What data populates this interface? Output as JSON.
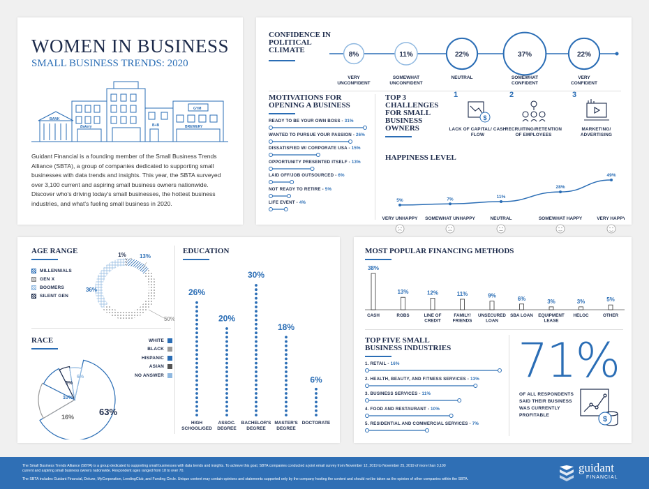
{
  "title": "WOMEN IN BUSINESS",
  "subtitle": "SMALL BUSINESS TRENDS: 2020",
  "intro": "Guidant Financial is a founding member of the Small Business Trends Alliance (SBTA), a group of companies dedicated to supporting small businesses with data trends and insights. This year, the SBTA surveyed over 3,100 current and aspiring small business owners nationwide. Discover who's driving today's small businesses, the hottest business industries, and what's fueling small business in 2020.",
  "illustration": {
    "bank": "BANK",
    "bakery": "Bakery",
    "gym": "GYM",
    "bnb": "B+B",
    "brewery": "BREWERY"
  },
  "colors": {
    "navy": "#1c2a4a",
    "blue": "#2a6db5",
    "light_blue": "#8fb8e0",
    "gray": "#9a9a9a",
    "footer": "#2f6fb5"
  },
  "confidence": {
    "title": "CONFIDENCE IN POLITICAL CLIMATE",
    "levels": [
      {
        "value": "8%",
        "label": "VERY UNCONFIDENT"
      },
      {
        "value": "11%",
        "label": "SOMEWHAT UNCONFIDENT"
      },
      {
        "value": "22%",
        "label": "NEUTRAL"
      },
      {
        "value": "37%",
        "label": "SOMEWHAT CONFIDENT"
      },
      {
        "value": "22%",
        "label": "VERY CONFIDENT"
      }
    ]
  },
  "motivations": {
    "title": "MOTIVATIONS FOR OPENING A BUSINESS",
    "items": [
      {
        "label": "READY TO BE YOUR OWN BOSS",
        "value": "31%",
        "pct": 31
      },
      {
        "label": "WANTED TO PURSUE YOUR PASSION",
        "value": "26%",
        "pct": 26
      },
      {
        "label": "DISSATISFIED W/ CORPORATE USA",
        "value": "15%",
        "pct": 15
      },
      {
        "label": "OPPORTUNITY PRESENTED ITSELF",
        "value": "13%",
        "pct": 13
      },
      {
        "label": "LAID OFF/JOB OUTSOURCED",
        "value": "6%",
        "pct": 6
      },
      {
        "label": "NOT READY TO RETIRE",
        "value": "5%",
        "pct": 5
      },
      {
        "label": "LIFE EVENT",
        "value": "4%",
        "pct": 4
      }
    ]
  },
  "challenges": {
    "title": "TOP 3 CHALLENGES FOR SMALL BUSINESS OWNERS",
    "items": [
      {
        "rank": "1",
        "label": "LACK OF CAPITAL/ CASH FLOW",
        "icon": "cash-flow-icon"
      },
      {
        "rank": "2",
        "label": "RECRUITING/RETENTION OF EMPLOYEES",
        "icon": "employees-icon"
      },
      {
        "rank": "3",
        "label": "MARKETING/ ADVERTISING",
        "icon": "marketing-icon"
      }
    ]
  },
  "happiness": {
    "title": "HAPPINESS LEVEL",
    "levels": [
      {
        "label": "VERY UNHAPPY",
        "value": "5%",
        "pct": 5
      },
      {
        "label": "SOMEWHAT UNHAPPY",
        "value": "7%",
        "pct": 7
      },
      {
        "label": "NEUTRAL",
        "value": "11%",
        "pct": 11
      },
      {
        "label": "SOMEWHAT HAPPY",
        "value": "28%",
        "pct": 28
      },
      {
        "label": "VERY HAPPY",
        "value": "49%",
        "pct": 49
      }
    ]
  },
  "age": {
    "title": "AGE RANGE",
    "legend": [
      "MILLENNIALS",
      "GEN X",
      "BOOMERS",
      "SILENT GEN"
    ],
    "slices": [
      {
        "name": "MILLENNIALS",
        "value": "13%",
        "pct": 13
      },
      {
        "name": "GEN X",
        "value": "50%",
        "pct": 50
      },
      {
        "name": "BOOMERS",
        "value": "36%",
        "pct": 36
      },
      {
        "name": "SILENT GEN",
        "value": "1%",
        "pct": 1
      }
    ]
  },
  "race": {
    "title": "RACE",
    "legend": [
      "WHITE",
      "BLACK",
      "HISPANIC",
      "ASIAN",
      "NO ANSWER"
    ],
    "slices": [
      {
        "name": "WHITE",
        "value": "63%",
        "pct": 63
      },
      {
        "name": "BLACK",
        "value": "16%",
        "pct": 16
      },
      {
        "name": "HISPANIC",
        "value": "10%",
        "pct": 10
      },
      {
        "name": "ASIAN",
        "value": "5%",
        "pct": 5
      },
      {
        "name": "NO ANSWER",
        "value": "6%",
        "pct": 6
      }
    ]
  },
  "education": {
    "title": "EDUCATION",
    "items": [
      {
        "label": "HIGH SCHOOL/GED",
        "value": "26%",
        "pct": 26
      },
      {
        "label": "ASSOC. DEGREE",
        "value": "20%",
        "pct": 20
      },
      {
        "label": "BACHELOR'S DEGREE",
        "value": "30%",
        "pct": 30
      },
      {
        "label": "MASTER'S DEGREE",
        "value": "18%",
        "pct": 18
      },
      {
        "label": "DOCTORATE",
        "value": "6%",
        "pct": 6
      }
    ]
  },
  "financing": {
    "title": "MOST POPULAR FINANCING METHODS",
    "items": [
      {
        "label": "CASH",
        "value": "38%",
        "pct": 38
      },
      {
        "label": "ROBS",
        "value": "13%",
        "pct": 13
      },
      {
        "label": "LINE OF CREDIT",
        "value": "12%",
        "pct": 12
      },
      {
        "label": "FAMILY/ FRIENDS",
        "value": "11%",
        "pct": 11
      },
      {
        "label": "UNSECURED LOAN",
        "value": "9%",
        "pct": 9
      },
      {
        "label": "SBA LOAN",
        "value": "6%",
        "pct": 6
      },
      {
        "label": "EQUIPMENT LEASE",
        "value": "3%",
        "pct": 3
      },
      {
        "label": "HELOC",
        "value": "3%",
        "pct": 3
      },
      {
        "label": "OTHER",
        "value": "5%",
        "pct": 5
      }
    ]
  },
  "industries": {
    "title": "TOP FIVE SMALL BUSINESS INDUSTRIES",
    "items": [
      {
        "label": "1. RETAIL",
        "value": "16%",
        "pct": 16
      },
      {
        "label": "2. HEALTH, BEAUTY, AND FITNESS SERVICES",
        "value": "13%",
        "pct": 13
      },
      {
        "label": "3. BUSINESS SERVICES",
        "value": "11%",
        "pct": 11
      },
      {
        "label": "4. FOOD AND RESTAURANT",
        "value": "10%",
        "pct": 10
      },
      {
        "label": "5. RESIDENTIAL AND COMMERCIAL SERVICES",
        "value": "7%",
        "pct": 7
      }
    ]
  },
  "profitable": {
    "value": "71%",
    "label": "OF ALL RESPONDENTS SAID THEIR BUSINESS WAS CURRENTLY PROFITABLE"
  },
  "footer": {
    "line1": "The Small Business Trends Alliance (SBTA) is a group dedicated to supporting small businesses with data trends and insights. To achieve this goal, SBTA companies conducted a joint email survey from November 12, 2019 to November 25, 2019 of more than 3,100 current and aspiring small business owners nationwide. Respondent ages ranged from 18 to over 70.",
    "line2": "The SBTA includes Guidant Financial, Deluxe, MyCorporation, LendingClub, and Funding Circle. Unique content may contain opinions and statements supported only by the company hosting the content and should not be taken as the opinion of other companies within the SBTA.",
    "logo_main": "guidant",
    "logo_sub": "FINANCIAL"
  },
  "chart_data": [
    {
      "type": "bar",
      "title": "CONFIDENCE IN POLITICAL CLIMATE",
      "categories": [
        "VERY UNCONFIDENT",
        "SOMEWHAT UNCONFIDENT",
        "NEUTRAL",
        "SOMEWHAT CONFIDENT",
        "VERY CONFIDENT"
      ],
      "values": [
        8,
        11,
        22,
        37,
        22
      ]
    },
    {
      "type": "bar",
      "title": "MOTIVATIONS FOR OPENING A BUSINESS",
      "categories": [
        "READY TO BE YOUR OWN BOSS",
        "WANTED TO PURSUE YOUR PASSION",
        "DISSATISFIED W/ CORPORATE USA",
        "OPPORTUNITY PRESENTED ITSELF",
        "LAID OFF/JOB OUTSOURCED",
        "NOT READY TO RETIRE",
        "LIFE EVENT"
      ],
      "values": [
        31,
        26,
        15,
        13,
        6,
        5,
        4
      ]
    },
    {
      "type": "line",
      "title": "HAPPINESS LEVEL",
      "categories": [
        "VERY UNHAPPY",
        "SOMEWHAT UNHAPPY",
        "NEUTRAL",
        "SOMEWHAT HAPPY",
        "VERY HAPPY"
      ],
      "values": [
        5,
        7,
        11,
        28,
        49
      ]
    },
    {
      "type": "pie",
      "title": "AGE RANGE",
      "categories": [
        "MILLENNIALS",
        "GEN X",
        "BOOMERS",
        "SILENT GEN"
      ],
      "values": [
        13,
        50,
        36,
        1
      ]
    },
    {
      "type": "pie",
      "title": "RACE",
      "categories": [
        "WHITE",
        "BLACK",
        "HISPANIC",
        "ASIAN",
        "NO ANSWER"
      ],
      "values": [
        63,
        16,
        10,
        5,
        6
      ]
    },
    {
      "type": "bar",
      "title": "EDUCATION",
      "categories": [
        "HIGH SCHOOL/GED",
        "ASSOC. DEGREE",
        "BACHELOR'S DEGREE",
        "MASTER'S DEGREE",
        "DOCTORATE"
      ],
      "values": [
        26,
        20,
        30,
        18,
        6
      ]
    },
    {
      "type": "bar",
      "title": "MOST POPULAR FINANCING METHODS",
      "categories": [
        "CASH",
        "ROBS",
        "LINE OF CREDIT",
        "FAMILY/ FRIENDS",
        "UNSECURED LOAN",
        "SBA LOAN",
        "EQUIPMENT LEASE",
        "HELOC",
        "OTHER"
      ],
      "values": [
        38,
        13,
        12,
        11,
        9,
        6,
        3,
        3,
        5
      ]
    },
    {
      "type": "bar",
      "title": "TOP FIVE SMALL BUSINESS INDUSTRIES",
      "categories": [
        "1. RETAIL",
        "2. HEALTH, BEAUTY, AND FITNESS SERVICES",
        "3. BUSINESS SERVICES",
        "4. FOOD AND RESTAURANT",
        "5. RESIDENTIAL AND COMMERCIAL SERVICES"
      ],
      "values": [
        16,
        13,
        11,
        10,
        7
      ]
    }
  ]
}
